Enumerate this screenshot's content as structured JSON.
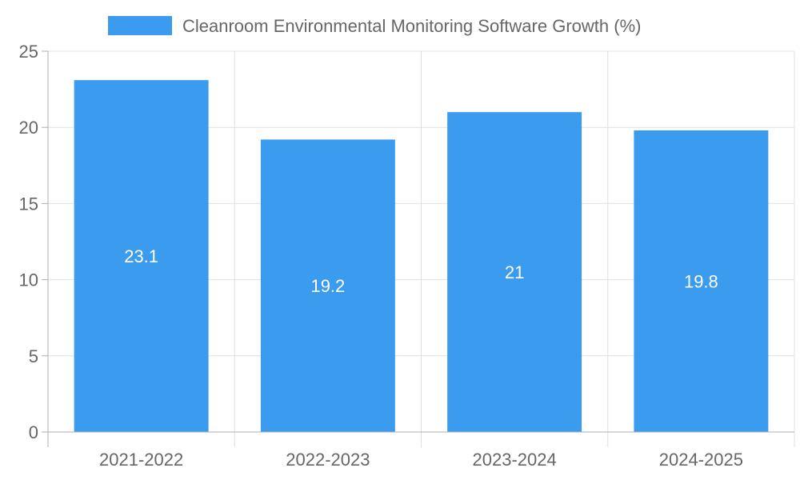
{
  "chart_data": {
    "type": "bar",
    "title": "",
    "xlabel": "",
    "ylabel": "",
    "categories": [
      "2021-2022",
      "2022-2023",
      "2023-2024",
      "2024-2025"
    ],
    "series": [
      {
        "name": "Cleanroom Environmental Monitoring Software Growth (%)",
        "values": [
          23.1,
          19.2,
          21,
          19.8
        ]
      }
    ],
    "data_labels": [
      "23.1",
      "19.2",
      "21",
      "19.8"
    ],
    "ylim": [
      0,
      25
    ],
    "y_ticks": [
      0,
      5,
      10,
      15,
      20,
      25
    ],
    "grid": true,
    "legend_position": "top",
    "colors": {
      "bar": "#3a9bef",
      "grid": "#e0e0e0",
      "axis": "#b0b0b0",
      "text": "#666666",
      "data_label": "#ffffff"
    }
  }
}
